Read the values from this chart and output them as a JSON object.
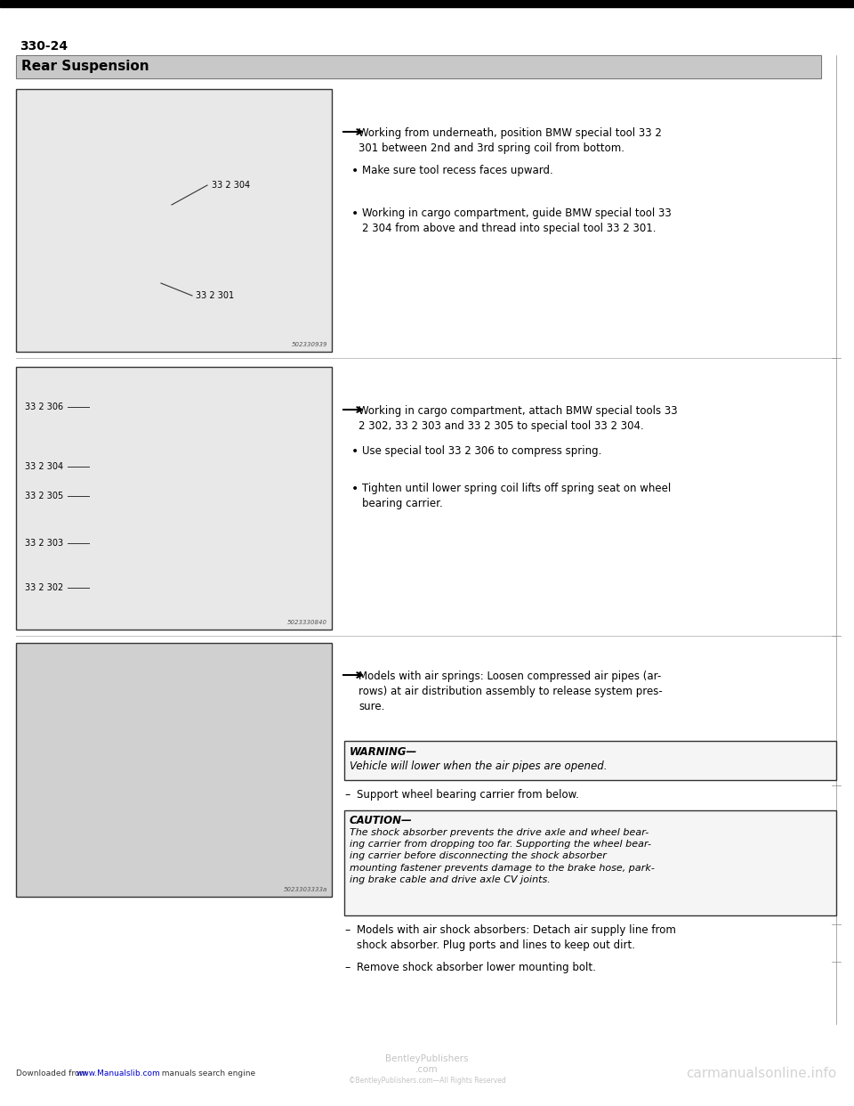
{
  "page_number": "330-24",
  "section_title": "Rear Suspension",
  "bg_color": "#ffffff",
  "header_bar_color": "#c8c8c8",
  "header_text_color": "#000000",
  "top_bar_color": "#000000",
  "section1": {
    "arrow_text": "Working from underneath, position BMW special tool 33 2\n301 between 2nd and 3rd spring coil from bottom.",
    "bullets": [
      "Make sure tool recess faces upward.",
      "Working in cargo compartment, guide BMW special tool 33\n2 304 from above and thread into special tool 33 2 301."
    ],
    "image_id": "502330939"
  },
  "section2": {
    "arrow_text": "Working in cargo compartment, attach BMW special tools 33\n2 302, 33 2 303 and 33 2 305 to special tool 33 2 304.",
    "bullets": [
      "Use special tool 33 2 306 to compress spring.",
      "Tighten until lower spring coil lifts off spring seat on wheel\nbearing carrier."
    ],
    "image_id": "5023330840"
  },
  "section3": {
    "arrow_text": "Models with air springs: Loosen compressed air pipes (ar-\nrows) at air distribution assembly to release system pres-\nsure.",
    "warning_title": "WARNING—",
    "warning_text": "Vehicle will lower when the air pipes are opened.",
    "dash1": "Support wheel bearing carrier from below.",
    "caution_title": "CAUTION—",
    "caution_text": "The shock absorber prevents the drive axle and wheel bear-\ning carrier from dropping too far. Supporting the wheel bear-\ning carrier before disconnecting the shock absorber\nmounting fastener prevents damage to the brake hose, park-\ning brake cable and drive axle CV joints.",
    "dash2": "Models with air shock absorbers: Detach air supply line from\nshock absorber. Plug ports and lines to keep out dirt.",
    "dash3": "Remove shock absorber lower mounting bolt.",
    "image_id": "5023303333a"
  },
  "footer_left_part1": "Downloaded from ",
  "footer_left_link": "www.Manualslib.com",
  "footer_left_part2": "  manuals search engine",
  "footer_center": "BentleyPublishers\n.com",
  "footer_center2": "©BentleyPublishers.com—All Rights Reserved",
  "footer_right": "carmanualsonline.info"
}
